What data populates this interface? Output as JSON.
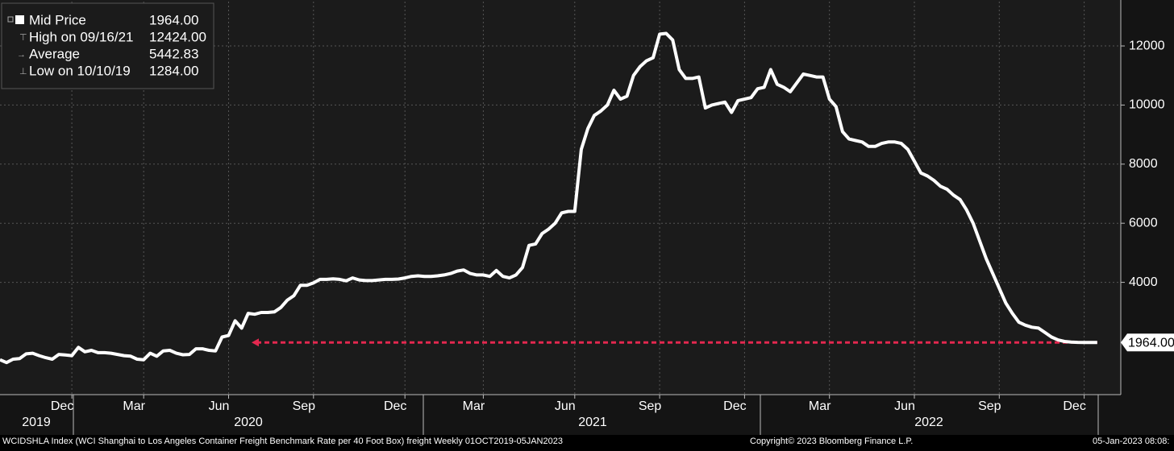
{
  "chart_data": {
    "type": "line",
    "categories": [
      null,
      null,
      null,
      null,
      null,
      null,
      null,
      null,
      null,
      null,
      null,
      "Dec",
      null,
      null,
      null,
      null,
      null,
      null,
      null,
      null,
      null,
      null,
      "Mar",
      null,
      null,
      null,
      null,
      null,
      null,
      null,
      null,
      null,
      null,
      null,
      null,
      "Jun",
      null,
      null,
      null,
      null,
      null,
      null,
      null,
      null,
      null,
      null,
      null,
      null,
      "Sep",
      null,
      null,
      null,
      null,
      null,
      null,
      null,
      null,
      null,
      null,
      null,
      null,
      null,
      "Dec",
      null,
      null,
      null,
      null,
      null,
      null,
      null,
      null,
      null,
      null,
      null,
      "Mar",
      null,
      null,
      null,
      null,
      null,
      null,
      null,
      null,
      null,
      null,
      null,
      null,
      null,
      "Jun",
      null,
      null,
      null,
      null,
      null,
      null,
      null,
      null,
      null,
      null,
      null,
      null,
      "Sep",
      null,
      null,
      null,
      null,
      null,
      null,
      null,
      null,
      null,
      null,
      null,
      null,
      "Dec",
      null,
      null,
      null,
      null,
      null,
      null,
      null,
      null,
      null,
      null,
      null,
      null,
      "Mar",
      null,
      null,
      null,
      null,
      null,
      null,
      null,
      null,
      null,
      null,
      null,
      null,
      "Jun",
      null,
      null,
      null,
      null,
      null,
      null,
      null,
      null,
      null,
      null,
      null,
      null,
      "Sep",
      null,
      null,
      null,
      null,
      null,
      null,
      null,
      null,
      null,
      null,
      null,
      null,
      "Dec",
      null,
      null
    ],
    "series": [
      {
        "name": "Mid Price",
        "color": "#ffffff",
        "values": [
          1380,
          1284,
          1400,
          1420,
          1580,
          1600,
          1520,
          1450,
          1400,
          1560,
          1540,
          1520,
          1800,
          1650,
          1700,
          1620,
          1620,
          1600,
          1560,
          1520,
          1500,
          1400,
          1380,
          1600,
          1500,
          1680,
          1700,
          1600,
          1550,
          1560,
          1750,
          1750,
          1700,
          1680,
          2150,
          2200,
          2700,
          2450,
          2950,
          2920,
          2980,
          2980,
          3000,
          3150,
          3400,
          3550,
          3900,
          3900,
          3980,
          4100,
          4100,
          4120,
          4100,
          4050,
          4150,
          4080,
          4060,
          4060,
          4080,
          4100,
          4100,
          4110,
          4150,
          4200,
          4220,
          4200,
          4200,
          4220,
          4250,
          4300,
          4380,
          4420,
          4300,
          4250,
          4250,
          4200,
          4400,
          4200,
          4150,
          4250,
          4500,
          5250,
          5300,
          5650,
          5800,
          6000,
          6350,
          6400,
          6400,
          8500,
          9200,
          9650,
          9800,
          10000,
          10500,
          10200,
          10300,
          11000,
          11300,
          11500,
          11600,
          12400,
          12424,
          12200,
          11200,
          10900,
          10900,
          10950,
          9900,
          10000,
          10050,
          10100,
          9750,
          10150,
          10200,
          10250,
          10550,
          10600,
          11200,
          10700,
          10600,
          10450,
          10750,
          11050,
          11000,
          10950,
          10950,
          10200,
          9950,
          9100,
          8850,
          8800,
          8750,
          8600,
          8600,
          8700,
          8750,
          8750,
          8700,
          8500,
          8100,
          7700,
          7600,
          7450,
          7250,
          7150,
          6950,
          6800,
          6450,
          6000,
          5400,
          4800,
          4300,
          3800,
          3300,
          2950,
          2650,
          2550,
          2480,
          2450,
          2300,
          2150,
          2050,
          2000,
          1980,
          1970,
          1965,
          1964,
          1964
        ]
      }
    ],
    "year_labels": [
      "2019",
      "2020",
      "2021",
      "2022"
    ],
    "ylim": [
      200,
      13500
    ],
    "yticks": [
      4000,
      6000,
      8000,
      10000,
      12000
    ],
    "grid": true,
    "last": {
      "value": 1964,
      "value_label": "1964.00"
    },
    "stats": [
      {
        "label": "High on 09/16/21",
        "value": 12424,
        "value_label": "12424.00"
      },
      {
        "label": "Average",
        "value": 5442.83,
        "value_label": "5442.83"
      },
      {
        "label": "Low on 10/10/19",
        "value": 1284,
        "value_label": "1284.00"
      }
    ],
    "reference_line": {
      "value": 1964,
      "color": "#e3284f"
    }
  },
  "footer": {
    "description": "WCIDSHLA Index (WCI Shanghai to Los Angeles Container Freight Benchmark Rate per 40 Foot Box) freight  Weekly 01OCT2019-05JAN2023",
    "copyright": "Copyright© 2023 Bloomberg Finance L.P.",
    "timestamp": "05-Jan-2023 08:08:"
  }
}
